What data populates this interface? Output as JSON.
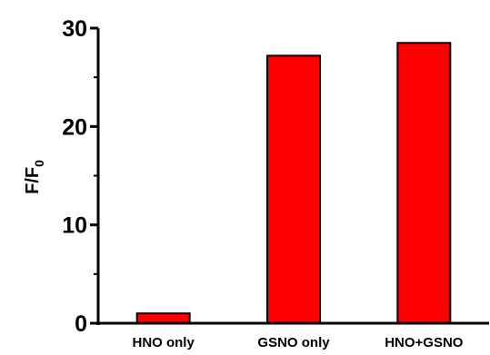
{
  "chart_data": {
    "type": "bar",
    "categories": [
      "HNO only",
      "GSNO only",
      "HNO+GSNO"
    ],
    "values": [
      1.0,
      27.2,
      28.5
    ],
    "title": "",
    "xlabel": "",
    "ylabel_main": "F/F",
    "ylabel_sub": "0",
    "ylim": [
      0,
      30
    ],
    "yticks": [
      0,
      10,
      20,
      30
    ],
    "yticks_minor": [
      5,
      15,
      25
    ],
    "grid": false,
    "bar_color": "#ff0000",
    "bar_edge_color": "#000000"
  }
}
